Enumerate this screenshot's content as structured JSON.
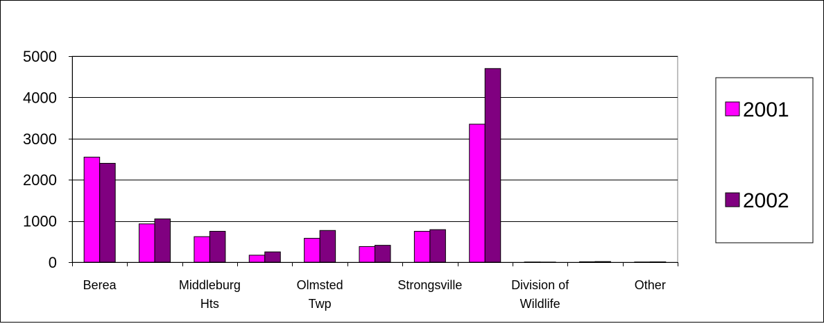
{
  "chart_data": {
    "type": "bar",
    "title": "",
    "xlabel": "",
    "ylabel": "",
    "ylim": [
      0,
      5000
    ],
    "yticks": [
      0,
      1000,
      2000,
      3000,
      4000,
      5000
    ],
    "grid": true,
    "legend_position": "right",
    "categories": [
      "Berea",
      "",
      "Middleburg Hts",
      "",
      "Olmsted Twp",
      "",
      "Strongsville",
      "",
      "Division of Wildlife",
      "",
      "Other"
    ],
    "category_label_lines": [
      [
        "Berea"
      ],
      [],
      [
        "Middleburg",
        "Hts"
      ],
      [],
      [
        "Olmsted",
        "Twp"
      ],
      [],
      [
        "Strongsville"
      ],
      [],
      [
        "Division of",
        "Wildlife"
      ],
      [],
      [
        "Other"
      ]
    ],
    "series": [
      {
        "name": "2001",
        "color": "#ff00ff",
        "values": [
          2550,
          930,
          620,
          170,
          580,
          380,
          750,
          3350,
          5,
          10,
          5
        ]
      },
      {
        "name": "2002",
        "color": "#800080",
        "values": [
          2400,
          1050,
          750,
          250,
          770,
          410,
          790,
          4700,
          3,
          15,
          8
        ]
      }
    ]
  }
}
